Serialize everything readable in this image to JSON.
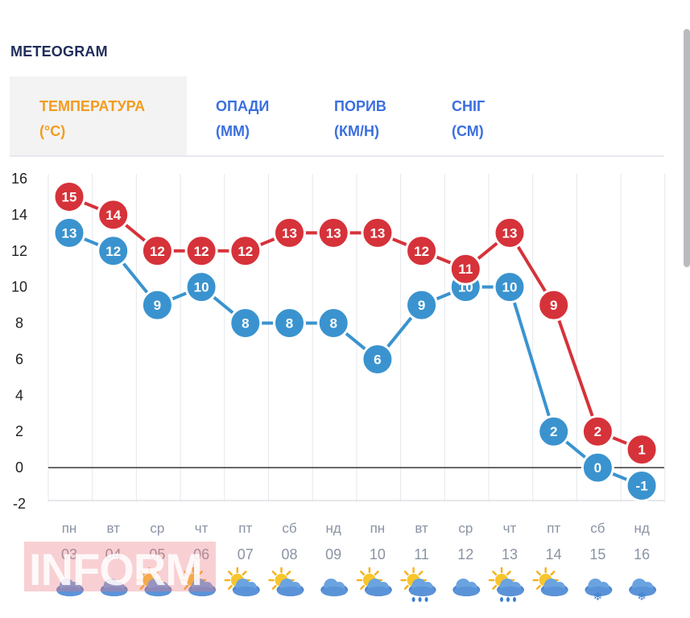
{
  "title": "METEOGRAM",
  "tabs": [
    {
      "line1": "ТЕМПЕРАТУРА",
      "line2": "(°C)",
      "active": true
    },
    {
      "line1": "ОПАДИ",
      "line2": "(ММ)",
      "active": false
    },
    {
      "line1": "ПОРИВ",
      "line2": "(КМ/Н)",
      "active": false
    },
    {
      "line1": "СНІГ",
      "line2": "(СМ)",
      "active": false
    }
  ],
  "watermark": "INFORM",
  "chart_data": {
    "type": "line",
    "ylim": [
      -2,
      16
    ],
    "yticks": [
      "16",
      "14",
      "12",
      "10",
      "8",
      "6",
      "4",
      "2",
      "0",
      "-2"
    ],
    "days": [
      {
        "dow": "пн",
        "date": "03",
        "icon": "cloud-icon"
      },
      {
        "dow": "вт",
        "date": "04",
        "icon": "cloud-icon"
      },
      {
        "dow": "ср",
        "date": "05",
        "icon": "sun-cloud-icon"
      },
      {
        "dow": "чт",
        "date": "06",
        "icon": "sun-cloud-icon"
      },
      {
        "dow": "пт",
        "date": "07",
        "icon": "sun-cloud-icon"
      },
      {
        "dow": "сб",
        "date": "08",
        "icon": "sun-cloud-icon"
      },
      {
        "dow": "нд",
        "date": "09",
        "icon": "cloud-icon"
      },
      {
        "dow": "пн",
        "date": "10",
        "icon": "sun-cloud-icon"
      },
      {
        "dow": "вт",
        "date": "11",
        "icon": "sun-rain-icon"
      },
      {
        "dow": "ср",
        "date": "12",
        "icon": "cloud-icon"
      },
      {
        "dow": "чт",
        "date": "13",
        "icon": "sun-rain-icon"
      },
      {
        "dow": "пт",
        "date": "14",
        "icon": "sun-cloud-icon"
      },
      {
        "dow": "сб",
        "date": "15",
        "icon": "snow-icon"
      },
      {
        "dow": "нд",
        "date": "16",
        "icon": "snow-icon"
      }
    ],
    "series": [
      {
        "name": "max",
        "color": "#d6323a",
        "values": [
          15,
          14,
          12,
          12,
          12,
          13,
          13,
          13,
          12,
          11,
          13,
          9,
          2,
          1
        ]
      },
      {
        "name": "min",
        "color": "#3a93cf",
        "values": [
          13,
          12,
          9,
          10,
          8,
          8,
          8,
          6,
          9,
          10,
          10,
          2,
          0,
          -1
        ]
      }
    ]
  }
}
